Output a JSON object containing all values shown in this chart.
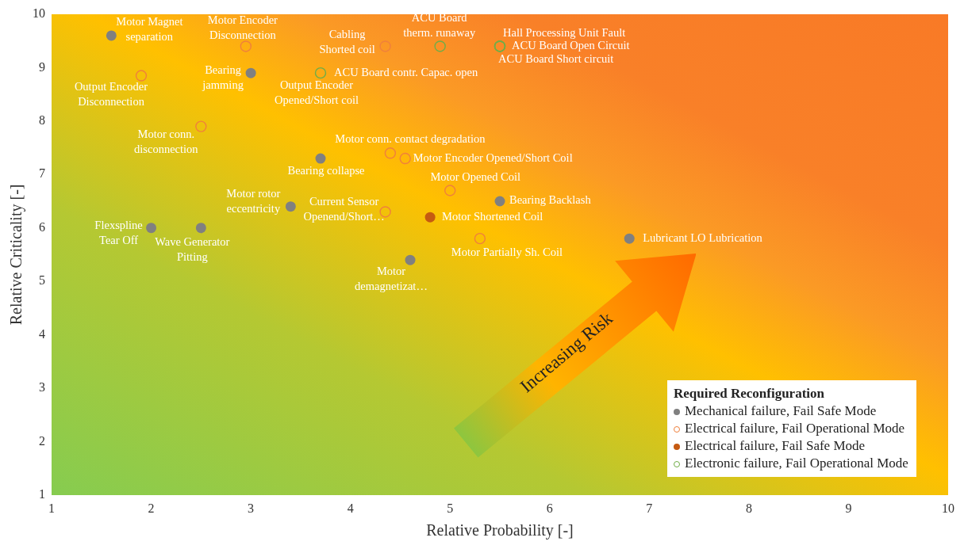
{
  "chart_data": {
    "type": "scatter",
    "xlabel": "Relative Probability [-]",
    "ylabel": "Relative Criticality [-]",
    "xlim": [
      1,
      10
    ],
    "ylim": [
      1,
      10
    ],
    "xticks": [
      1,
      2,
      3,
      4,
      5,
      6,
      7,
      8,
      9,
      10
    ],
    "yticks": [
      1,
      2,
      3,
      4,
      5,
      6,
      7,
      8,
      9,
      10
    ],
    "grid": false,
    "marker": "circle",
    "legend": "bottom right",
    "legend_title": "Required Reconfiguration",
    "series": [
      {
        "name": "Mechanical failure, Fail Safe Mode",
        "color": "#808080",
        "x": [
          1.6,
          3.0,
          3.7,
          5.5,
          3.4,
          2.0,
          2.5,
          6.8,
          4.6
        ],
        "values": [
          9.6,
          8.9,
          7.3,
          6.5,
          6.4,
          6.0,
          6.0,
          5.8,
          5.4
        ]
      },
      {
        "name": "Electrical failure, Fail Operational Mode",
        "color": "#f0803c",
        "x": [
          2.95,
          1.9,
          3.7,
          4.35,
          2.5,
          4.4,
          4.55,
          5.0,
          4.35,
          5.3
        ],
        "values": [
          9.4,
          8.85,
          null,
          9.4,
          7.9,
          7.4,
          7.3,
          6.7,
          6.3,
          5.8
        ]
      },
      {
        "name": "Electrical failure, Fail Safe Mode",
        "color": "#c55a11",
        "x": [
          4.8
        ],
        "values": [
          6.2
        ]
      },
      {
        "name": "Electronic failure, Fail Operational Mode",
        "color": "#70ad47",
        "x": [
          3.7,
          4.9,
          5.5,
          5.5,
          5.5
        ],
        "values": [
          8.9,
          9.4,
          9.4,
          9.4,
          9.4
        ]
      }
    ],
    "annotations": [
      {
        "text": "Motor Magnet separation",
        "x": 1.6,
        "y": 9.6
      },
      {
        "text": "Motor Encoder Disconnection",
        "x": 2.95,
        "y": 9.4
      },
      {
        "text": "Output Encoder Disconnection",
        "x": 1.9,
        "y": 8.85
      },
      {
        "text": "Bearing jamming",
        "x": 3.0,
        "y": 8.9
      },
      {
        "text": "Output Encoder Opened/Short coil",
        "x": 3.7,
        "y": 8.9
      },
      {
        "text": "ACU Board contr. Capac. open",
        "x": 3.7,
        "y": 8.9
      },
      {
        "text": "Cabling Shorted coil",
        "x": 4.35,
        "y": 9.4
      },
      {
        "text": "ACU Board therm. runaway",
        "x": 4.9,
        "y": 9.4
      },
      {
        "text": "Hall Processing Unit Fault",
        "x": 5.5,
        "y": 9.4
      },
      {
        "text": "ACU Board Open Circuit",
        "x": 5.5,
        "y": 9.4
      },
      {
        "text": "ACU Board Short circuit",
        "x": 5.5,
        "y": 9.4
      },
      {
        "text": "Motor conn. disconnection",
        "x": 2.5,
        "y": 7.9
      },
      {
        "text": "Bearing collapse",
        "x": 3.7,
        "y": 7.3
      },
      {
        "text": "Motor conn. contact degradation",
        "x": 4.4,
        "y": 7.4
      },
      {
        "text": "Motor Encoder Opened/Short Coil",
        "x": 4.55,
        "y": 7.3
      },
      {
        "text": "Motor Opened Coil",
        "x": 5.0,
        "y": 6.7
      },
      {
        "text": "Bearing Backlash",
        "x": 5.5,
        "y": 6.5
      },
      {
        "text": "Motor rotor eccentricity",
        "x": 3.4,
        "y": 6.4
      },
      {
        "text": "Current Sensor Openend/Short…",
        "x": 4.35,
        "y": 6.3
      },
      {
        "text": "Motor Shortened Coil",
        "x": 4.8,
        "y": 6.2
      },
      {
        "text": "Flexspline Tear Off",
        "x": 2.0,
        "y": 6.0
      },
      {
        "text": "Wave Generator Pitting",
        "x": 2.5,
        "y": 6.0
      },
      {
        "text": "Motor Partially Sh. Coil",
        "x": 5.3,
        "y": 5.8
      },
      {
        "text": "Lubricant LO Lubrication",
        "x": 6.8,
        "y": 5.8
      },
      {
        "text": "Motor demagnetizat…",
        "x": 4.6,
        "y": 5.4
      },
      "Increasing Risk"
    ]
  }
}
